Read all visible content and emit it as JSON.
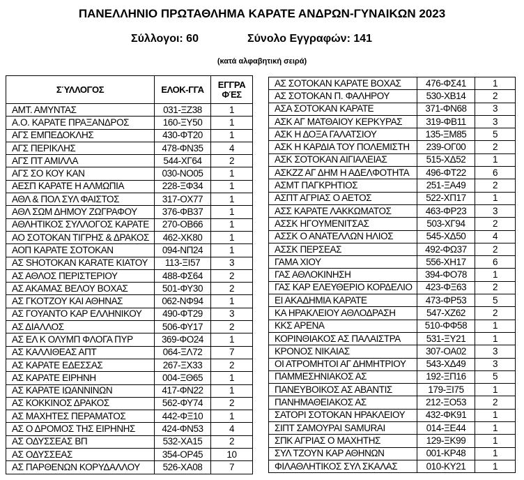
{
  "title": "ΠΑΝΕΛΛΗΝΙΟ ΠΡΩΤΑΘΛΗΜΑ ΚΑΡΑΤΕ ΑΝΔΡΩΝ-ΓΥΝΑΙΚΩΝ 2023",
  "clubs_count": "Σύλλογοι: 60",
  "registrations_total": "Σύνολο Εγγραφών: 141",
  "sort_note": "(κατά αλφαβητική σειρά)",
  "headers": {
    "club": "ΣΎΛΛΟΓΟΣ",
    "code": "ΕΛΟΚ-ΓΓΑ",
    "count_1": "ΕΓΓΡΑ",
    "count_2": "ΦΈΣ"
  },
  "left_rows": [
    [
      "ΑΜΤ. ΑΜΥΝΤΑΣ",
      "031-ΞΖ38",
      "1"
    ],
    [
      "Α.Ο. ΚΑΡΑΤΕ ΠΡΑΞΑΝΔΡΟΣ",
      "160-ΞΥ50",
      "1"
    ],
    [
      "ΑΓΣ ΕΜΠΕΔΟΚΛΗΣ",
      "430-ΦΤ20",
      "1"
    ],
    [
      "ΑΓΣ ΠΕΡΙΚΛΗΣ",
      "478-ΦΝ35",
      "4"
    ],
    [
      "ΑΓΣ ΠΤ ΑΜΙΛΛΑ",
      "544-ΧΓ64",
      "2"
    ],
    [
      "ΑΓΣ ΣΟ ΚΟΥ ΚΑΝ",
      "030-ΝΟ05",
      "1"
    ],
    [
      "ΑΕΣΠ ΚΑΡΑΤΕ Η ΑΛΜΩΠΙΑ",
      "228-ΞΦ34",
      "1"
    ],
    [
      "ΑΘΛ & ΠΟΛ ΣΥΛ ΦΑΙΣΤΟΣ",
      "317-ΟΧ77",
      "1"
    ],
    [
      "ΑΘΛ ΣΩΜ ΔΗΜΟΥ ΖΩΓΡΑΦΟΥ",
      "376-ΦΒ37",
      "1"
    ],
    [
      "ΑΘΛΗΤΙΚΟΣ ΣΥΛΛΟΓΟΣ ΚΑΡΑΤΕ",
      "270-ΟΒ66",
      "1"
    ],
    [
      "ΑΟ ΣΟΤΟΚΑΝ ΤΙΓΡΗΣ & ΔΡΑΚΟΣ",
      "462-ΧΚ80",
      "1"
    ],
    [
      "ΑΟΠ ΚΑΡΑΤΕ ΣΟΤΟΚΑΝ",
      "094-ΝΠ24",
      "1"
    ],
    [
      "ΑΣ SHOTOKAN KARATE ΚΙΑΤΟΥ",
      "113-ΞΙ57",
      "3"
    ],
    [
      "ΑΣ ΑΘΛΟΣ ΠΕΡΙΣΤΕΡΙΟΥ",
      "488-ΦΣ64",
      "2"
    ],
    [
      "ΑΣ ΑΚΑΜΑΣ ΒΕΛΟΥ ΒΟΧΑΣ",
      "501-ΦΥ30",
      "2"
    ],
    [
      "ΑΣ ΓΚΟΤΖΟΥ ΚΑΙ ΑΘΗΝΑΣ",
      "062-ΝΦ94",
      "1"
    ],
    [
      "ΑΣ ΓΟΥΑΝΤΟ ΚΑΡ ΕΛΛΗΝΙΚΟΥ",
      "490-ΦΤ29",
      "3"
    ],
    [
      "ΑΣ ΔΙΑΛΛΟΣ",
      "506-ΦΥ17",
      "2"
    ],
    [
      "ΑΣ ΕΛ Κ ΟΛΥΜΠ ΦΛΟΓΑ ΠΥΡ",
      "369-ΦΟ24",
      "1"
    ],
    [
      "ΑΣ ΚΑΛΛΙΘΕΑΣ ΑΠΤ",
      "064-ΞΛ72",
      "7"
    ],
    [
      "ΑΣ ΚΑΡΑΤΕ ΕΔΕΣΣΑΣ",
      "267-ΞΧ33",
      "2"
    ],
    [
      "ΑΣ ΚΑΡΑΤΕ ΕΙΡΗΝΗ",
      "004-ΞΘ65",
      "1"
    ],
    [
      "ΑΣ ΚΑΡΑΤΕ ΙΩΑΝΝΙΝΩΝ",
      "417-ΦΝ22",
      "1"
    ],
    [
      "ΑΣ ΚΟΚΚΙΝΟΣ ΔΡΑΚΟΣ",
      "562-ΦΥ74",
      "2"
    ],
    [
      "ΑΣ ΜΑΧΗΤΕΣ ΠΕΡΑΜΑΤΟΣ",
      "442-ΦΞ10",
      "1"
    ],
    [
      "ΑΣ Ο ΔΡΟΜΟΣ ΤΗΣ ΕΙΡΗΝΗΣ",
      "424-ΦΝ53",
      "4"
    ],
    [
      "ΑΣ ΟΔΥΣΣΕΑΣ ΒΠ",
      "532-ΧΑ15",
      "2"
    ],
    [
      "ΑΣ ΟΔΥΣΣΕΑΣ",
      "354-ΟΡ45",
      "10"
    ],
    [
      "ΑΣ ΠΑΡΘΕΝΩΝ ΚΟΡΥΔΑΛΛΟΥ",
      "526-ΧΑ08",
      "7"
    ]
  ],
  "right_rows": [
    [
      "ΑΣ ΣΟΤΟΚΑΝ ΚΑΡΑΤΕ ΒΟΧΑΣ",
      "476-ΦΣ41",
      "1"
    ],
    [
      "ΑΣ ΣΟΤΟΚΑΝ Π. ΦΑΛΗΡΟΥ",
      "530-ΧΒ14",
      "2"
    ],
    [
      "ΑΣΑ ΣΟΤΟΚΑΝ ΚΑΡΑΤΕ",
      "371-ΦΝ68",
      "3"
    ],
    [
      "ΑΣΚ ΑΓ ΜΑΤΘΑΙΟΥ ΚΕΡΚΥΡΑΣ",
      "319-ΦΒ11",
      "3"
    ],
    [
      "ΑΣΚ Η ΔΟΞΑ ΓΑΛΑΤΣΙΟΥ",
      "135-ΞΜ85",
      "5"
    ],
    [
      "ΑΣΚ Η ΚΑΡΔΙΑ ΤΟΥ ΠΟΛΕΜΙΣΤΗ",
      "239-ΟΓ00",
      "2"
    ],
    [
      "ΑΣΚ ΣΟΤΟΚΑΝ ΑΙΓΙΑΛΕΙΑΣ",
      "515-ΧΔ52",
      "1"
    ],
    [
      "ΑΣΚΖΖ ΑΓ ΔΗΜ Η ΑΔΕΛΦΟΤΗΤΑ",
      "496-ΦΤ22",
      "6"
    ],
    [
      "ΑΣΜΤ ΠΑΓΚΡΗΤΙΟΣ",
      "251-ΞΑ49",
      "2"
    ],
    [
      "ΑΣΠΤ ΑΓΡΙΑΣ Ο ΑΕΤΟΣ",
      "522-ΧΠ17",
      "1"
    ],
    [
      "ΑΣΣ ΚΑΡΑΤΕ ΛΑΚΚΩΜΑΤΟΣ",
      "463-ΦΡ23",
      "3"
    ],
    [
      "ΑΣΣΚ ΗΓΟΥΜΕΝΙΤΣΑΣ",
      "503-ΧΓ94",
      "2"
    ],
    [
      "ΑΣΣΚ Ο ΑΝΑΤΕΛΛΩΝ ΗΛΙΟΣ",
      "545-ΧΔ50",
      "4"
    ],
    [
      "ΑΣΣΚ ΠΕΡΣΕΑΣ",
      "492-ΦΩ37",
      "2"
    ],
    [
      "ΓΑΜΑ ΧΙΟΥ",
      "556-ΧΗ17",
      "6"
    ],
    [
      "ΓΑΣ ΑΘΛΟΚΙΝΗΣΗ",
      "394-ΦΟ78",
      "1"
    ],
    [
      "ΓΑΣ ΚΑΡ ΕΛΕΥΘΕΡΙΟ ΚΟΡΔΕΛΙΟ",
      "423-ΦΞ63",
      "2"
    ],
    [
      "ΕΙ ΑΚΑΔΗΜΙΑ ΚΑΡΑΤΕ",
      "473-ΦΡ53",
      "5"
    ],
    [
      "ΚΑ ΗΡΑΚΛΕΙΟΥ ΑΘΛΟΔΡΑΣΗ",
      "547-ΧΖ62",
      "2"
    ],
    [
      "ΚΚΣ ΑΡΕΝΑ",
      "510-ΦΦ58",
      "1"
    ],
    [
      "ΚΟΡΙΝΘΙΑΚΟΣ ΑΣ ΠΑΛΑΙΣΤΡΑ",
      "531-ΞΥ21",
      "1"
    ],
    [
      "ΚΡΟΝΟΣ ΝΙΚΑΙΑΣ",
      "307-ΟΑ02",
      "3"
    ],
    [
      "ΟΙ ΑΤΡΟΜΗΤΟΙ ΑΓ ΔΗΜΗΤΡΙΟΥ",
      "543-ΧΔ49",
      "3"
    ],
    [
      "ΠΑΜΜΕΣΗΝΙΑΚΟΣ ΑΣ",
      "192-ΞΠ16",
      "5"
    ],
    [
      "ΠΑΝΕΥΒΟΙΚΟΣ ΑΣ ΑΒΑΝΤΙΣ",
      "179-ΞΙ75",
      "1"
    ],
    [
      "ΠΑΝΗΜΑΘΕΙΑΚΟΣ ΑΣ",
      "212-ΞΟ53",
      "2"
    ],
    [
      "ΣΑΤΟΡΙ ΣΟΤΟΚΑΝ ΗΡΑΚΛΕΙΟΥ",
      "432-ΦΚ91",
      "1"
    ],
    [
      "ΣΙΠΤ ΣΑΜΟΥΡΑΙ SAMURAI",
      "014-ΞΕ44",
      "1"
    ],
    [
      "ΣΠΚ ΑΓΡΙΑΣ Ο ΜΑΧΗΤΗΣ",
      "129-ΞΚ99",
      "1"
    ],
    [
      "ΣΥΛ ΤΖΟΥΝ ΚΑΡ ΑΘΗΝΩΝ",
      "001-ΚΡ48",
      "1"
    ],
    [
      "ΦΙΛΑΘΛΗΤΙΚΟΣ ΣΥΛ ΣΚΑΛΑΣ",
      "010-ΚΥ21",
      "1"
    ]
  ]
}
